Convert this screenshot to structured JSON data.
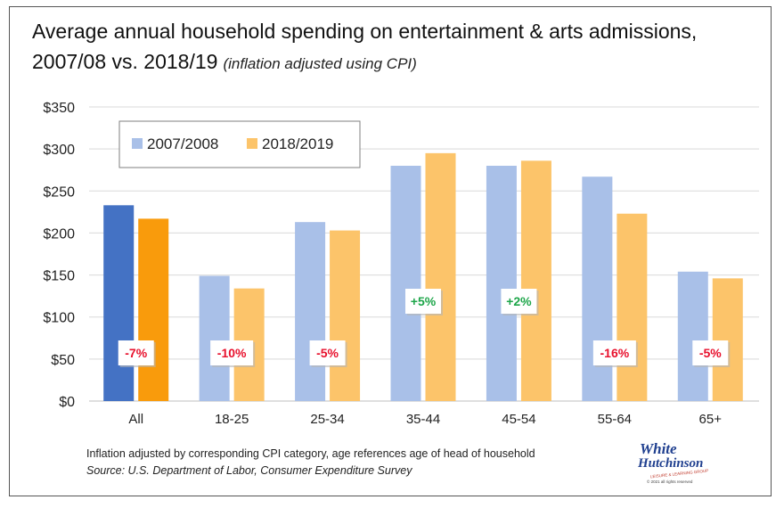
{
  "title": {
    "main": "Average annual household spending on entertainment & arts admissions, 2007/08 vs. 2018/19",
    "sub": "(inflation adjusted using CPI)"
  },
  "chart_data": {
    "type": "bar",
    "categories": [
      "All",
      "18-25",
      "25-34",
      "35-44",
      "45-54",
      "55-64",
      "65+"
    ],
    "series": [
      {
        "name": "2007/2008",
        "values": [
          233,
          149,
          213,
          280,
          280,
          267,
          154
        ],
        "color": "#a9c0e8",
        "highlight_color": "#4472c4"
      },
      {
        "name": "2018/2019",
        "values": [
          217,
          134,
          203,
          295,
          286,
          223,
          146
        ],
        "color": "#fcc46a",
        "highlight_color": "#f99b0c"
      }
    ],
    "highlight_category": "All",
    "change_labels": [
      "-7%",
      "-10%",
      "-5%",
      "+5%",
      "+2%",
      "-16%",
      "-5%"
    ],
    "change_colors": {
      "negative": "#e8112d",
      "positive": "#1ea64a"
    },
    "ylim": [
      0,
      350
    ],
    "yticks": [
      0,
      50,
      100,
      150,
      200,
      250,
      300,
      350
    ],
    "ytick_labels": [
      "$0",
      "$50",
      "$100",
      "$150",
      "$200",
      "$250",
      "$300",
      "$350"
    ],
    "grid": true,
    "legend_position": "top-left"
  },
  "footnote": {
    "note": "Inflation adjusted by corresponding CPI category, age references  age of head of household",
    "source": "Source: U.S. Department of Labor, Consumer Expenditure Survey"
  },
  "logo": {
    "line1": "White",
    "line2": "Hutchinson",
    "tagline": "LEISURE & LEARNING GROUP",
    "copyright": "© 2021 all rights reserved"
  }
}
